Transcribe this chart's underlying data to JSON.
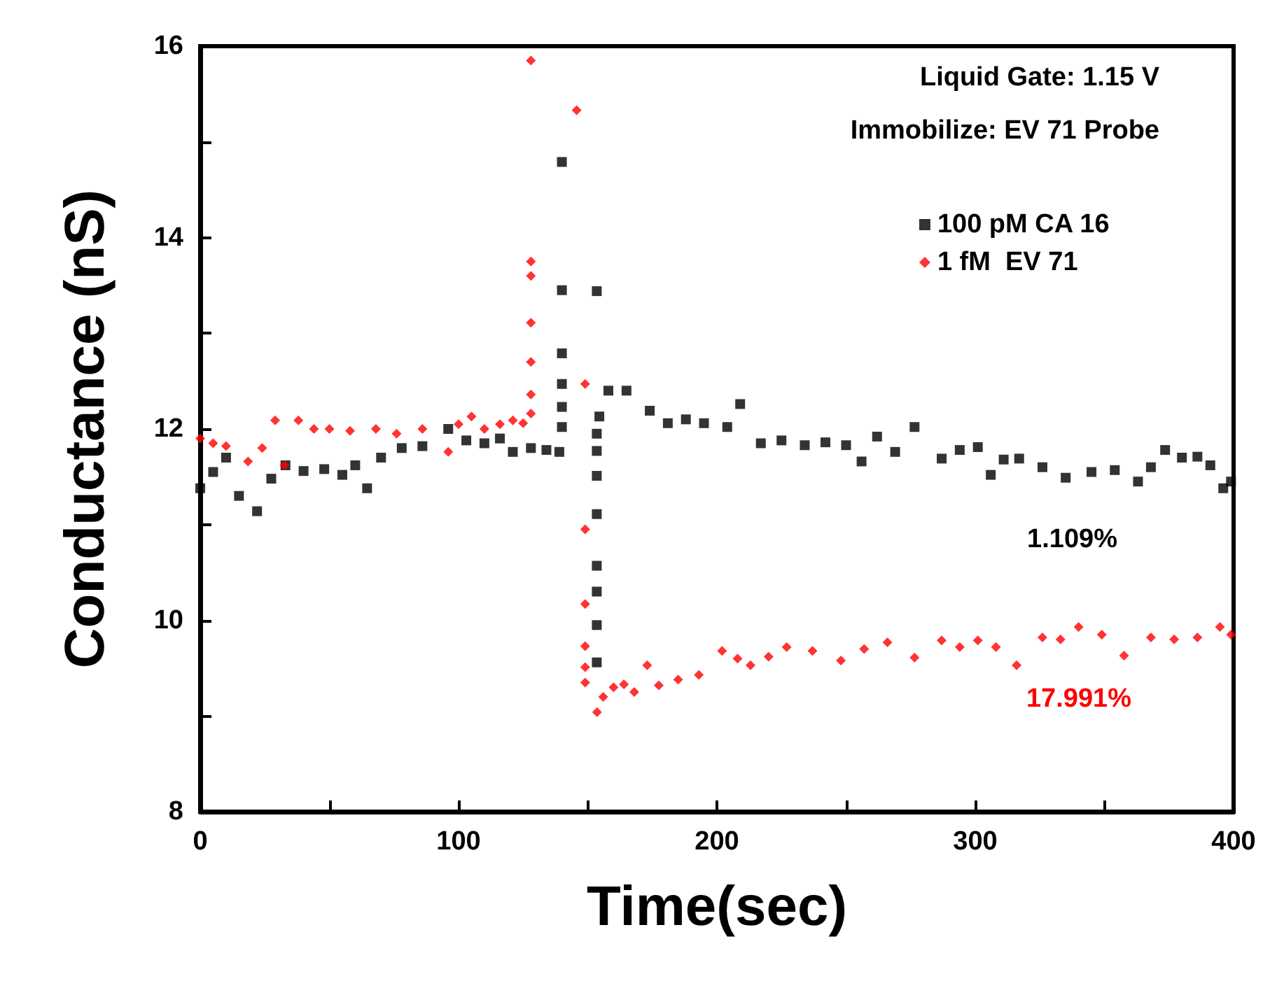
{
  "chart_data": {
    "type": "scatter",
    "xlabel": "Time(sec)",
    "ylabel": "Conductance (nS)",
    "xlim": [
      0,
      400
    ],
    "ylim": [
      8,
      16
    ],
    "xticks": [
      0,
      {
        "value": 50,
        "label": null
      },
      100,
      {
        "value": 150,
        "label": null
      },
      200,
      {
        "value": 250,
        "label": null
      },
      300,
      {
        "value": 350,
        "label": null
      },
      400
    ],
    "yticks": [
      8,
      {
        "value": 9,
        "label": null
      },
      10,
      {
        "value": 11,
        "label": null
      },
      12,
      {
        "value": 13,
        "label": null
      },
      14,
      {
        "value": 15,
        "label": null
      },
      16
    ],
    "legend": "top right",
    "grid": false,
    "annotations": [
      "Liquid Gate: 1.15 V",
      "Immobilize: EV 71 Probe",
      "1.109%",
      "17.991%"
    ],
    "series": [
      {
        "name": "100 pM CA 16",
        "color": "#000000",
        "marker": "square",
        "x": [
          0,
          5,
          10,
          15,
          22,
          27.5,
          33,
          40,
          48,
          55,
          60,
          64.6,
          70,
          78,
          86,
          96,
          103,
          110,
          116,
          121,
          128,
          134,
          139,
          140,
          140,
          140,
          140,
          140,
          140,
          153.5,
          153.5,
          153.5,
          153.5,
          153.5,
          153.5,
          153.5,
          153.5,
          153.5,
          154.5,
          158,
          165,
          174,
          181,
          188,
          195,
          204,
          209,
          217,
          225,
          234,
          242,
          250,
          256,
          262,
          269,
          276.5,
          287,
          294,
          301,
          306,
          311,
          317,
          326,
          335,
          345,
          354,
          363,
          368,
          373.5,
          380,
          386,
          391,
          396,
          399
        ],
        "values": [
          11.38,
          11.55,
          11.7,
          11.3,
          11.14,
          11.48,
          11.62,
          11.56,
          11.58,
          11.52,
          11.62,
          11.38,
          11.7,
          11.8,
          11.82,
          12.0,
          11.88,
          11.85,
          11.9,
          11.76,
          11.8,
          11.78,
          11.76,
          14.79,
          13.45,
          12.79,
          12.47,
          12.23,
          12.02,
          13.44,
          11.95,
          11.77,
          11.51,
          11.11,
          10.57,
          10.3,
          9.95,
          9.56,
          12.13,
          12.4,
          12.4,
          12.19,
          12.06,
          12.1,
          12.06,
          12.02,
          12.26,
          11.85,
          11.88,
          11.83,
          11.86,
          11.83,
          11.66,
          11.92,
          11.76,
          12.02,
          11.69,
          11.78,
          11.81,
          11.52,
          11.68,
          11.69,
          11.6,
          11.49,
          11.55,
          11.57,
          11.45,
          11.6,
          11.78,
          11.7,
          11.71,
          11.62,
          11.38,
          11.45
        ]
      },
      {
        "name": "1 fM  EV 71",
        "color": "#ff0000",
        "marker": "diamond",
        "x": [
          0,
          5,
          10,
          18.5,
          24,
          29,
          32.6,
          38,
          44,
          50,
          58,
          68,
          76,
          86,
          96,
          100,
          105,
          110,
          116,
          121,
          125,
          128,
          128,
          128,
          128,
          128,
          128,
          128,
          145.7,
          149,
          149,
          149,
          149,
          149,
          149,
          153.6,
          156,
          160,
          164,
          168,
          173,
          177.5,
          185,
          193,
          202,
          208,
          213,
          220,
          227,
          237,
          248,
          257,
          266,
          276.5,
          287,
          294,
          301,
          308,
          316,
          326,
          333,
          340,
          349,
          357.6,
          368,
          377,
          386,
          394.7,
          399
        ],
        "values": [
          11.9,
          11.85,
          11.82,
          11.66,
          11.8,
          12.09,
          11.62,
          12.09,
          12.0,
          12.0,
          11.98,
          12.0,
          11.95,
          12.0,
          11.76,
          12.05,
          12.13,
          12.0,
          12.05,
          12.09,
          12.06,
          15.85,
          13.75,
          13.6,
          13.11,
          12.7,
          12.36,
          12.16,
          15.33,
          12.47,
          10.95,
          10.17,
          9.73,
          9.51,
          9.35,
          9.04,
          9.2,
          9.3,
          9.33,
          9.25,
          9.53,
          9.32,
          9.38,
          9.43,
          9.68,
          9.6,
          9.53,
          9.62,
          9.72,
          9.68,
          9.58,
          9.7,
          9.77,
          9.61,
          9.79,
          9.72,
          9.79,
          9.72,
          9.53,
          9.82,
          9.8,
          9.93,
          9.85,
          9.63,
          9.82,
          9.8,
          9.82,
          9.93,
          9.85
        ]
      }
    ]
  }
}
